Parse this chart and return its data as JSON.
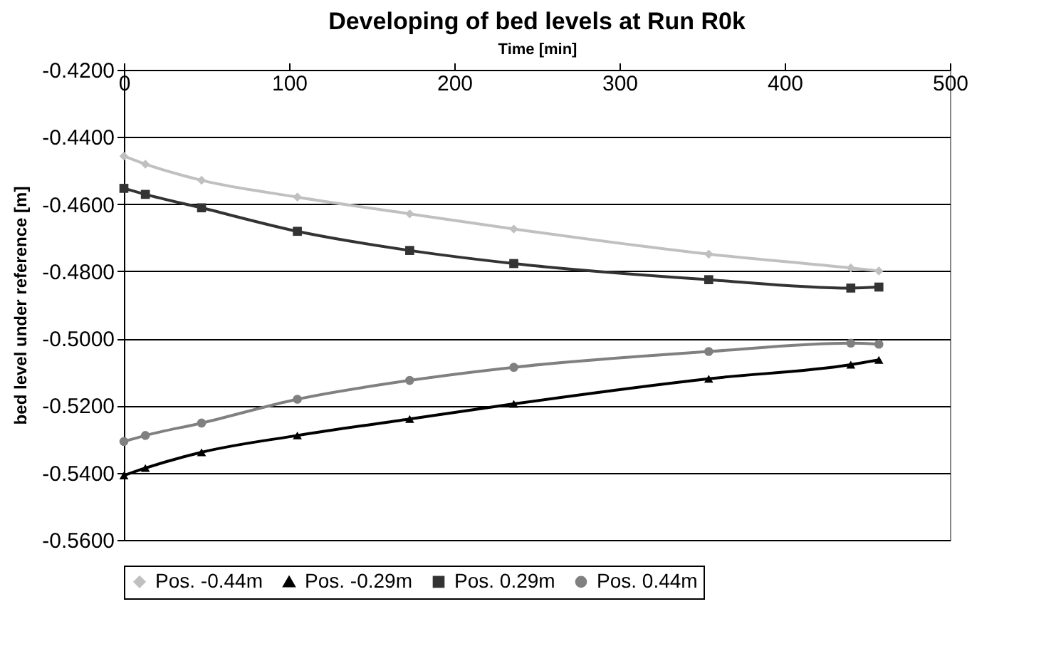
{
  "chart_data": {
    "type": "line",
    "title": "Developing of bed levels at Run R0k",
    "xlabel": "Time [min]",
    "ylabel": "bed level under reference  [m]",
    "x": [
      0,
      13,
      47,
      105,
      173,
      236,
      354,
      440,
      457
    ],
    "series": [
      {
        "name": "Pos. -0.44m",
        "color": "#c0c0c0",
        "marker": "diamond",
        "values": [
          -0.4457,
          -0.4481,
          -0.4529,
          -0.4579,
          -0.4629,
          -0.4674,
          -0.4749,
          -0.479,
          -0.4799
        ]
      },
      {
        "name": "Pos. -0.29m",
        "color": "#000000",
        "marker": "triangle",
        "values": [
          -0.5408,
          -0.5386,
          -0.5339,
          -0.5289,
          -0.524,
          -0.5195,
          -0.512,
          -0.5078,
          -0.5064
        ]
      },
      {
        "name": "Pos. 0.29m",
        "color": "#333333",
        "marker": "square",
        "values": [
          -0.4553,
          -0.4571,
          -0.4611,
          -0.4681,
          -0.4738,
          -0.4777,
          -0.4825,
          -0.485,
          -0.4847
        ]
      },
      {
        "name": "Pos. 0.44m",
        "color": "#808080",
        "marker": "circle",
        "values": [
          -0.5307,
          -0.5289,
          -0.5252,
          -0.5181,
          -0.5125,
          -0.5086,
          -0.5039,
          -0.5014,
          -0.5017
        ]
      }
    ],
    "xlim": [
      0,
      500
    ],
    "xticks": [
      0,
      100,
      200,
      300,
      400,
      500
    ],
    "ylim": [
      -0.56,
      -0.42
    ],
    "yticks": [
      {
        "value": -0.56,
        "label": "-0.5600"
      },
      {
        "value": -0.54,
        "label": "-0.5400"
      },
      {
        "value": -0.52,
        "label": "-0.5200"
      },
      {
        "value": -0.5,
        "label": "-0.5000"
      },
      {
        "value": -0.48,
        "label": "-0.4800"
      },
      {
        "value": -0.46,
        "label": "-0.4600"
      },
      {
        "value": -0.44,
        "label": "-0.4400"
      },
      {
        "value": -0.42,
        "label": "-0.4200"
      }
    ],
    "grid": "y",
    "legend": "bottom",
    "line_style": "solid"
  }
}
